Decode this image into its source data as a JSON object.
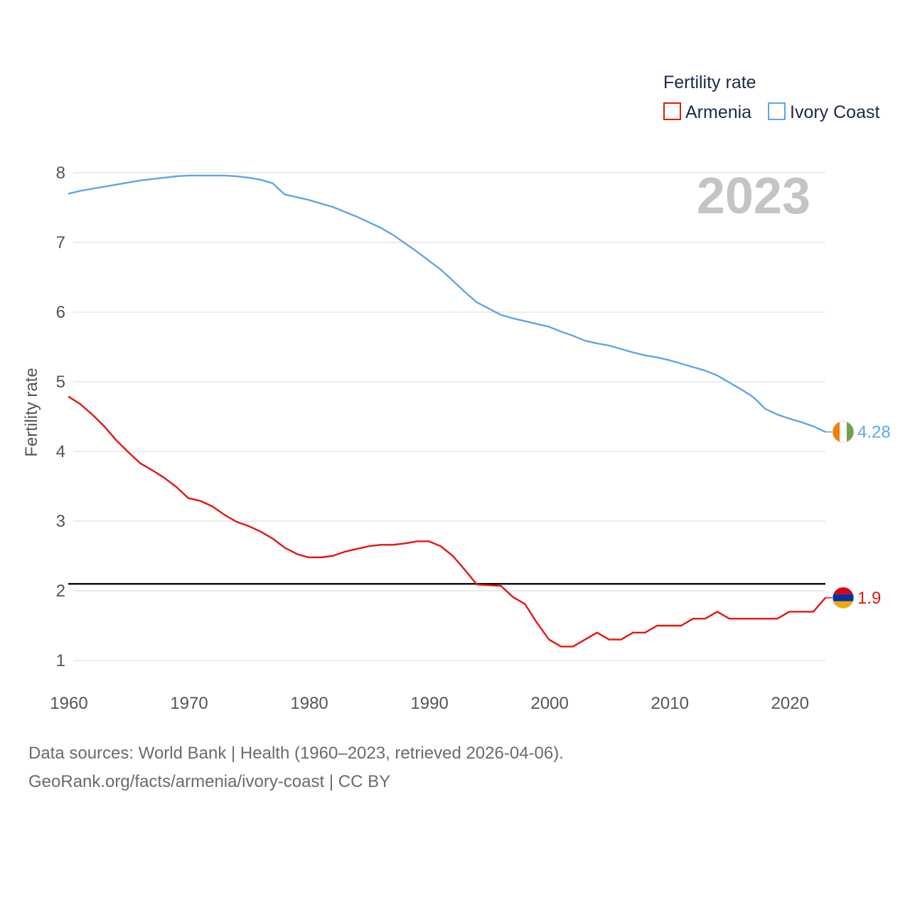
{
  "chart_data": {
    "type": "line",
    "xlim": [
      1960,
      2023
    ],
    "ylim": [
      0.7,
      8.2
    ],
    "x_ticks": [
      1960,
      1970,
      1980,
      1990,
      2000,
      2010,
      2020
    ],
    "y_ticks": [
      1,
      2,
      3,
      4,
      5,
      6,
      7,
      8
    ],
    "ylabel": "Fertility rate",
    "xlabel": "",
    "year_label": "2023",
    "legend": {
      "title": "Fertility rate",
      "position": "top-right"
    },
    "reference_line": {
      "y": 2.1,
      "color": "#111111"
    },
    "grid": true,
    "series": [
      {
        "name": "Armenia",
        "color": "#e8150f",
        "end_label": "1.9",
        "flag": "armenia-flag",
        "x": [
          1960,
          1961,
          1962,
          1963,
          1964,
          1965,
          1966,
          1967,
          1968,
          1969,
          1970,
          1971,
          1972,
          1973,
          1974,
          1975,
          1976,
          1977,
          1978,
          1979,
          1980,
          1981,
          1982,
          1983,
          1984,
          1985,
          1986,
          1987,
          1988,
          1989,
          1990,
          1991,
          1992,
          1993,
          1994,
          1995,
          1996,
          1997,
          1998,
          1999,
          2000,
          2001,
          2002,
          2003,
          2004,
          2005,
          2006,
          2007,
          2008,
          2009,
          2010,
          2011,
          2012,
          2013,
          2014,
          2015,
          2016,
          2017,
          2018,
          2019,
          2020,
          2021,
          2022,
          2023
        ],
        "values": [
          4.79,
          4.68,
          4.53,
          4.36,
          4.16,
          3.99,
          3.83,
          3.73,
          3.62,
          3.49,
          3.33,
          3.29,
          3.21,
          3.09,
          2.99,
          2.93,
          2.85,
          2.75,
          2.62,
          2.53,
          2.48,
          2.48,
          2.5,
          2.56,
          2.6,
          2.64,
          2.66,
          2.66,
          2.68,
          2.71,
          2.71,
          2.64,
          2.5,
          2.3,
          2.09,
          2.08,
          2.07,
          1.91,
          1.81,
          1.54,
          1.3,
          1.2,
          1.2,
          1.3,
          1.4,
          1.3,
          1.3,
          1.4,
          1.4,
          1.5,
          1.5,
          1.5,
          1.6,
          1.6,
          1.7,
          1.6,
          1.6,
          1.6,
          1.6,
          1.6,
          1.7,
          1.7,
          1.7,
          1.9
        ]
      },
      {
        "name": "Ivory Coast",
        "color": "#5fa5e6",
        "end_label": "4.28",
        "flag": "ivory-coast-flag",
        "x": [
          1960,
          1961,
          1962,
          1963,
          1964,
          1965,
          1966,
          1967,
          1968,
          1969,
          1970,
          1971,
          1972,
          1973,
          1974,
          1975,
          1976,
          1977,
          1978,
          1979,
          1980,
          1981,
          1982,
          1983,
          1984,
          1985,
          1986,
          1987,
          1988,
          1989,
          1990,
          1991,
          1992,
          1993,
          1994,
          1995,
          1996,
          1997,
          1998,
          1999,
          2000,
          2001,
          2002,
          2003,
          2004,
          2005,
          2006,
          2007,
          2008,
          2009,
          2010,
          2011,
          2012,
          2013,
          2014,
          2015,
          2016,
          2017,
          2018,
          2019,
          2020,
          2021,
          2022,
          2023
        ],
        "values": [
          7.7,
          7.74,
          7.77,
          7.8,
          7.83,
          7.86,
          7.89,
          7.91,
          7.93,
          7.95,
          7.96,
          7.96,
          7.96,
          7.96,
          7.95,
          7.93,
          7.9,
          7.85,
          7.69,
          7.65,
          7.61,
          7.56,
          7.51,
          7.44,
          7.37,
          7.29,
          7.21,
          7.11,
          6.99,
          6.87,
          6.74,
          6.61,
          6.45,
          6.29,
          6.14,
          6.05,
          5.96,
          5.91,
          5.87,
          5.83,
          5.79,
          5.72,
          5.66,
          5.59,
          5.55,
          5.52,
          5.47,
          5.42,
          5.38,
          5.35,
          5.31,
          5.26,
          5.21,
          5.16,
          5.09,
          4.99,
          4.89,
          4.78,
          4.61,
          4.53,
          4.47,
          4.42,
          4.36,
          4.28
        ]
      }
    ]
  },
  "footer": {
    "sources": "Data sources: World Bank | Health (1960–2023, retrieved 2026-04-06).",
    "link": "GeoRank.org/facts/armenia/ivory-coast | CC BY"
  }
}
